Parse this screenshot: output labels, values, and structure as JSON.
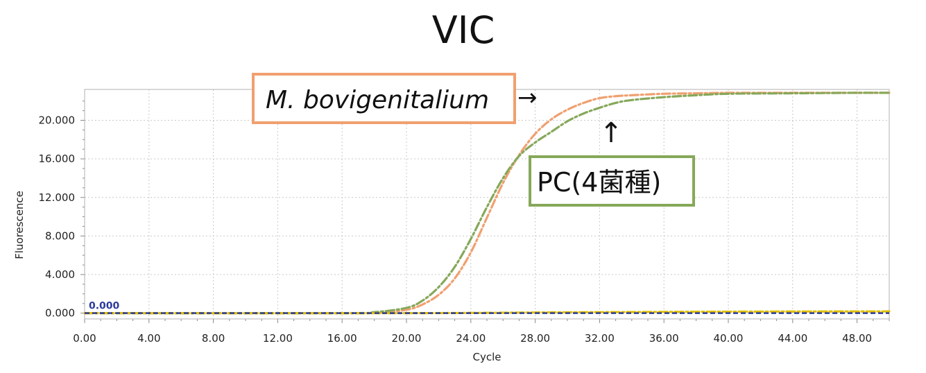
{
  "chart_data": {
    "type": "line",
    "title": "VIC",
    "xlabel": "Cycle",
    "ylabel": "Fluorescence",
    "xlim": [
      0,
      50
    ],
    "ylim": [
      -0.6,
      23.2
    ],
    "xticks": [
      "0.00",
      "4.00",
      "8.00",
      "12.00",
      "16.00",
      "20.00",
      "24.00",
      "28.00",
      "32.00",
      "36.00",
      "40.00",
      "44.00",
      "48.00"
    ],
    "yticks": [
      "0.000",
      "4.000",
      "8.000",
      "12.000",
      "16.000",
      "20.000"
    ],
    "grid": true,
    "threshold": {
      "value": 0,
      "label": "0.000",
      "color": "#2b3a9c"
    },
    "series": [
      {
        "name": "M. bovigenitalium",
        "color": "#f0a070",
        "x": [
          0,
          16,
          18,
          20,
          21,
          22,
          23,
          24,
          25,
          26,
          27,
          28,
          29,
          30,
          31,
          32,
          33,
          34,
          36,
          38,
          40,
          44,
          48,
          50
        ],
        "y": [
          0,
          0,
          0.05,
          0.35,
          0.9,
          1.9,
          3.6,
          6.3,
          9.9,
          13.5,
          16.4,
          18.6,
          20.1,
          21.1,
          21.8,
          22.3,
          22.5,
          22.6,
          22.75,
          22.8,
          22.85,
          22.85,
          22.85,
          22.85
        ]
      },
      {
        "name": "PC(4菌種)",
        "color": "#86a85a",
        "x": [
          0,
          16,
          18,
          20,
          21,
          22,
          23,
          24,
          25,
          26,
          27,
          28,
          29,
          30,
          31,
          32,
          33,
          34,
          36,
          38,
          40,
          44,
          48,
          50
        ],
        "y": [
          0,
          0,
          0.1,
          0.55,
          1.3,
          2.7,
          4.8,
          7.7,
          11.0,
          14.0,
          16.3,
          17.7,
          18.8,
          19.9,
          20.7,
          21.3,
          21.8,
          22.1,
          22.4,
          22.6,
          22.75,
          22.8,
          22.85,
          22.85
        ]
      },
      {
        "name": "",
        "color": "#e0c000",
        "x": [
          0,
          20,
          30,
          40,
          50
        ],
        "y": [
          0,
          0,
          0.08,
          0.15,
          0.18
        ]
      }
    ],
    "annotations": [
      {
        "text": "M. bovigenitalium",
        "arrow": "→",
        "box_color": "#f0a070"
      },
      {
        "text": "PC(4菌種)",
        "arrow": "↑",
        "box_color": "#86a85a"
      }
    ]
  }
}
